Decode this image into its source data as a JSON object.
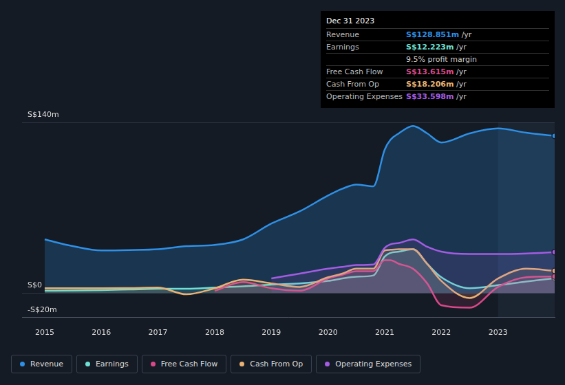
{
  "chart_data": {
    "type": "line",
    "x": [
      2015,
      2015.5,
      2016,
      2016.5,
      2017,
      2017.5,
      2018,
      2018.5,
      2019,
      2019.5,
      2020,
      2020.25,
      2020.5,
      2020.8,
      2021,
      2021.1,
      2021.25,
      2021.5,
      2021.75,
      2022,
      2022.5,
      2023,
      2023.5,
      2024
    ],
    "series": [
      {
        "name": "Revenue",
        "color": "#2e90e6",
        "values": [
          44,
          38.5,
          35,
          35.3,
          36,
          38.5,
          39.5,
          44,
          57,
          67,
          80,
          85.5,
          89,
          87.6,
          117.6,
          125.6,
          131,
          137,
          131,
          123.5,
          131,
          135,
          131.5,
          128.9
        ]
      },
      {
        "name": "Earnings",
        "color": "#6fe0d4",
        "values": [
          2,
          2.2,
          2.5,
          3,
          3.5,
          3.5,
          4.5,
          5.5,
          7,
          8,
          10,
          12,
          13.5,
          14.5,
          30,
          33,
          34,
          36,
          24,
          13,
          4,
          6.5,
          9.5,
          12.2
        ]
      },
      {
        "name": "Free Cash Flow",
        "color": "#d9488a",
        "values": [
          null,
          null,
          null,
          null,
          null,
          null,
          2,
          9,
          4,
          2,
          12,
          15,
          18,
          18,
          27,
          27,
          24,
          20,
          8,
          -10,
          -12,
          5,
          13,
          13.6
        ]
      },
      {
        "name": "Cash From Op",
        "color": "#e9b173",
        "values": [
          4,
          4,
          4,
          4.2,
          4.5,
          -1,
          4,
          11,
          8,
          5,
          13,
          16,
          20,
          20,
          35,
          35.5,
          36,
          36,
          24,
          10,
          -4,
          12,
          20,
          18.2
        ]
      },
      {
        "name": "Operating Expenses",
        "color": "#a35ce3",
        "values": [
          null,
          null,
          null,
          null,
          null,
          null,
          null,
          null,
          12,
          16,
          20,
          21.5,
          23,
          23.5,
          37,
          40,
          41,
          44,
          38,
          34,
          32,
          32,
          32.5,
          33.6
        ]
      }
    ],
    "xlim": [
      2014.6,
      2024
    ],
    "xticks": [
      2015,
      2016,
      2017,
      2018,
      2019,
      2020,
      2021,
      2022,
      2023
    ],
    "ylim": [
      -20,
      140
    ],
    "yticks": [
      {
        "value": 140,
        "label": "S$140m"
      },
      {
        "value": 0,
        "label": "S$0"
      },
      {
        "value": -20,
        "label": "-S$20m"
      }
    ],
    "grid": true,
    "legend": "bottom left",
    "annotations": [
      {
        "title": "Dec 31 2023",
        "rows": [
          {
            "label": "Revenue",
            "text": "S$128.851m /yr"
          },
          {
            "label": "Earnings",
            "text": "S$12.223m /yr"
          },
          {
            "text": "9.5% profit margin"
          },
          {
            "label": "Free Cash Flow",
            "text": "S$13.615m /yr"
          },
          {
            "label": "Cash From Op",
            "text": "S$18.206m /yr"
          },
          {
            "label": "Operating Expenses",
            "text": "S$33.598m /yr"
          }
        ]
      }
    ]
  }
}
